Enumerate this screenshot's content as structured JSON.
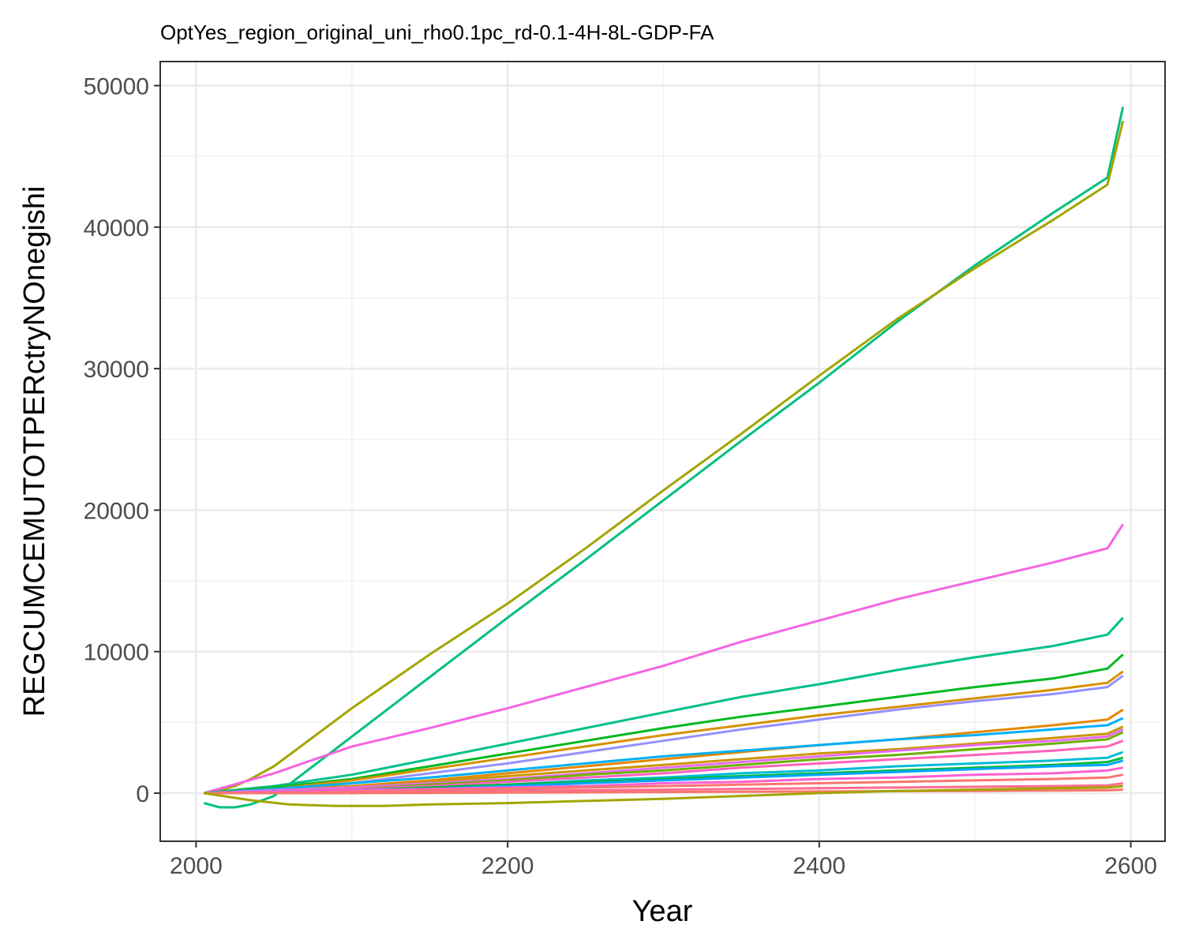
{
  "chart_data": {
    "type": "line",
    "title": "OptYes_region_original_uni_rho0.1pc_rd-0.1-4H-8L-GDP-FA",
    "xlabel": "Year",
    "ylabel": "REGCUMCEMUTOTPERctryNOnegishi",
    "xlim": [
      1977,
      2622
    ],
    "ylim": [
      -3400,
      51700
    ],
    "x_ticks": [
      2000,
      2200,
      2400,
      2600
    ],
    "x_tick_labels": [
      "2000",
      "2200",
      "2400",
      "2600"
    ],
    "y_ticks": [
      0,
      10000,
      20000,
      30000,
      40000,
      50000
    ],
    "y_tick_labels": [
      "0",
      "10000",
      "20000",
      "30000",
      "40000",
      "50000"
    ],
    "grid": true,
    "legend": "none",
    "series": [
      {
        "color": "#00BF7D",
        "x": [
          2005,
          2015,
          2025,
          2035,
          2050,
          2100,
          2150,
          2200,
          2250,
          2300,
          2350,
          2400,
          2450,
          2500,
          2550,
          2585,
          2595
        ],
        "y": [
          -700,
          -1000,
          -1000,
          -800,
          -200,
          4000,
          8200,
          12400,
          16500,
          20700,
          24900,
          29000,
          33300,
          37300,
          41000,
          43500,
          48500
        ]
      },
      {
        "color": "#A3A500",
        "x": [
          2005,
          2015,
          2025,
          2035,
          2050,
          2100,
          2150,
          2200,
          2250,
          2300,
          2350,
          2400,
          2450,
          2500,
          2550,
          2585,
          2595
        ],
        "y": [
          0,
          200,
          500,
          1000,
          1900,
          6000,
          9800,
          13400,
          17300,
          21400,
          25400,
          29500,
          33500,
          37100,
          40500,
          43000,
          47500
        ]
      },
      {
        "color": "#F564E3",
        "x": [
          2005,
          2050,
          2100,
          2150,
          2200,
          2250,
          2300,
          2350,
          2400,
          2450,
          2500,
          2550,
          2585,
          2595
        ],
        "y": [
          0,
          1400,
          3300,
          4600,
          6000,
          7500,
          9000,
          10700,
          12200,
          13700,
          15000,
          16300,
          17300,
          19000
        ]
      },
      {
        "color": "#00C08B",
        "x": [
          2005,
          2050,
          2100,
          2150,
          2200,
          2250,
          2300,
          2350,
          2400,
          2450,
          2500,
          2550,
          2585,
          2595
        ],
        "y": [
          0,
          500,
          1300,
          2400,
          3500,
          4600,
          5700,
          6800,
          7700,
          8700,
          9600,
          10400,
          11200,
          12400
        ]
      },
      {
        "color": "#00B81F",
        "x": [
          2005,
          2050,
          2100,
          2150,
          2200,
          2250,
          2300,
          2350,
          2400,
          2450,
          2500,
          2550,
          2585,
          2595
        ],
        "y": [
          0,
          400,
          1000,
          1900,
          2800,
          3700,
          4600,
          5400,
          6100,
          6800,
          7500,
          8100,
          8800,
          9800
        ]
      },
      {
        "color": "#D89000",
        "x": [
          2005,
          2050,
          2100,
          2150,
          2200,
          2250,
          2300,
          2350,
          2400,
          2450,
          2500,
          2550,
          2585,
          2595
        ],
        "y": [
          0,
          300,
          900,
          1700,
          2500,
          3300,
          4100,
          4800,
          5500,
          6100,
          6700,
          7300,
          7800,
          8600
        ]
      },
      {
        "color": "#9590FF",
        "x": [
          2005,
          2050,
          2100,
          2150,
          2200,
          2250,
          2300,
          2350,
          2400,
          2450,
          2500,
          2550,
          2585,
          2595
        ],
        "y": [
          0,
          200,
          700,
          1400,
          2100,
          2900,
          3700,
          4500,
          5200,
          5900,
          6500,
          7000,
          7500,
          8300
        ]
      },
      {
        "color": "#E58700",
        "x": [
          2005,
          2050,
          2100,
          2150,
          2200,
          2250,
          2300,
          2350,
          2400,
          2450,
          2500,
          2550,
          2585,
          2595
        ],
        "y": [
          0,
          200,
          500,
          900,
          1400,
          1900,
          2400,
          2900,
          3400,
          3800,
          4300,
          4800,
          5200,
          5900
        ]
      },
      {
        "color": "#00B0F6",
        "x": [
          2005,
          2050,
          2100,
          2150,
          2200,
          2250,
          2300,
          2350,
          2400,
          2450,
          2500,
          2550,
          2585,
          2595
        ],
        "y": [
          0,
          300,
          700,
          1100,
          1600,
          2100,
          2600,
          3000,
          3400,
          3800,
          4100,
          4500,
          4800,
          5300
        ]
      },
      {
        "color": "#C99800",
        "x": [
          2005,
          2050,
          2100,
          2150,
          2200,
          2250,
          2300,
          2350,
          2400,
          2450,
          2500,
          2550,
          2585,
          2595
        ],
        "y": [
          0,
          200,
          400,
          800,
          1200,
          1600,
          2000,
          2400,
          2800,
          3100,
          3500,
          3900,
          4200,
          4700
        ]
      },
      {
        "color": "#E76BF3",
        "x": [
          2005,
          2050,
          2100,
          2150,
          2200,
          2250,
          2300,
          2350,
          2400,
          2450,
          2500,
          2550,
          2585,
          2595
        ],
        "y": [
          0,
          200,
          400,
          700,
          1000,
          1400,
          1800,
          2200,
          2600,
          3000,
          3400,
          3700,
          4000,
          4500
        ]
      },
      {
        "color": "#6BB100",
        "x": [
          2005,
          2050,
          2100,
          2150,
          2200,
          2250,
          2300,
          2350,
          2400,
          2450,
          2500,
          2550,
          2585,
          2595
        ],
        "y": [
          0,
          100,
          300,
          600,
          900,
          1300,
          1600,
          2000,
          2400,
          2700,
          3100,
          3500,
          3800,
          4300
        ]
      },
      {
        "color": "#FF62BC",
        "x": [
          2005,
          2050,
          2100,
          2150,
          2200,
          2250,
          2300,
          2350,
          2400,
          2450,
          2500,
          2550,
          2585,
          2595
        ],
        "y": [
          0,
          100,
          300,
          500,
          800,
          1100,
          1400,
          1800,
          2100,
          2400,
          2700,
          3000,
          3300,
          3700
        ]
      },
      {
        "color": "#00BCD8",
        "x": [
          2005,
          2050,
          2100,
          2150,
          2200,
          2250,
          2300,
          2350,
          2400,
          2450,
          2500,
          2550,
          2585,
          2595
        ],
        "y": [
          0,
          100,
          200,
          400,
          600,
          900,
          1100,
          1400,
          1600,
          1900,
          2100,
          2300,
          2500,
          2900
        ]
      },
      {
        "color": "#00BA38",
        "x": [
          2005,
          2050,
          2100,
          2150,
          2200,
          2250,
          2300,
          2350,
          2400,
          2450,
          2500,
          2550,
          2585,
          2595
        ],
        "y": [
          0,
          100,
          200,
          400,
          600,
          800,
          1000,
          1200,
          1400,
          1600,
          1800,
          2000,
          2200,
          2500
        ]
      },
      {
        "color": "#00A5FF",
        "x": [
          2005,
          2050,
          2100,
          2150,
          2200,
          2250,
          2300,
          2350,
          2400,
          2450,
          2500,
          2550,
          2585,
          2595
        ],
        "y": [
          0,
          100,
          200,
          300,
          500,
          700,
          900,
          1100,
          1300,
          1500,
          1700,
          1900,
          2000,
          2300
        ]
      },
      {
        "color": "#FD61D1",
        "x": [
          2005,
          2050,
          2100,
          2150,
          2200,
          2250,
          2300,
          2350,
          2400,
          2450,
          2500,
          2550,
          2585,
          2595
        ],
        "y": [
          0,
          100,
          200,
          300,
          400,
          500,
          700,
          800,
          1000,
          1100,
          1300,
          1400,
          1600,
          1800
        ]
      },
      {
        "color": "#F8766D",
        "x": [
          2005,
          2050,
          2100,
          2150,
          2200,
          2250,
          2300,
          2350,
          2400,
          2450,
          2500,
          2550,
          2585,
          2595
        ],
        "y": [
          0,
          0,
          100,
          200,
          300,
          400,
          500,
          600,
          700,
          800,
          900,
          1000,
          1100,
          1300
        ]
      },
      {
        "color": "#FF6C91",
        "x": [
          2005,
          2050,
          2100,
          2150,
          2200,
          2250,
          2300,
          2350,
          2400,
          2450,
          2500,
          2550,
          2585,
          2595
        ],
        "y": [
          0,
          0,
          50,
          100,
          150,
          200,
          250,
          300,
          350,
          400,
          450,
          500,
          550,
          700
        ]
      },
      {
        "color": "#F8766D",
        "x": [
          2005,
          2050,
          2100,
          2150,
          2200,
          2250,
          2300,
          2350,
          2400,
          2450,
          2500,
          2550,
          2585,
          2595
        ],
        "y": [
          0,
          0,
          0,
          20,
          40,
          60,
          80,
          100,
          120,
          140,
          160,
          180,
          200,
          250
        ]
      },
      {
        "color": "#A3A500",
        "x": [
          2005,
          2035,
          2060,
          2090,
          2120,
          2150,
          2200,
          2250,
          2300,
          2350,
          2400,
          2450,
          2500,
          2550,
          2585,
          2595
        ],
        "y": [
          0,
          -500,
          -800,
          -900,
          -900,
          -800,
          -700,
          -550,
          -400,
          -200,
          0,
          150,
          250,
          350,
          400,
          500
        ]
      }
    ]
  }
}
